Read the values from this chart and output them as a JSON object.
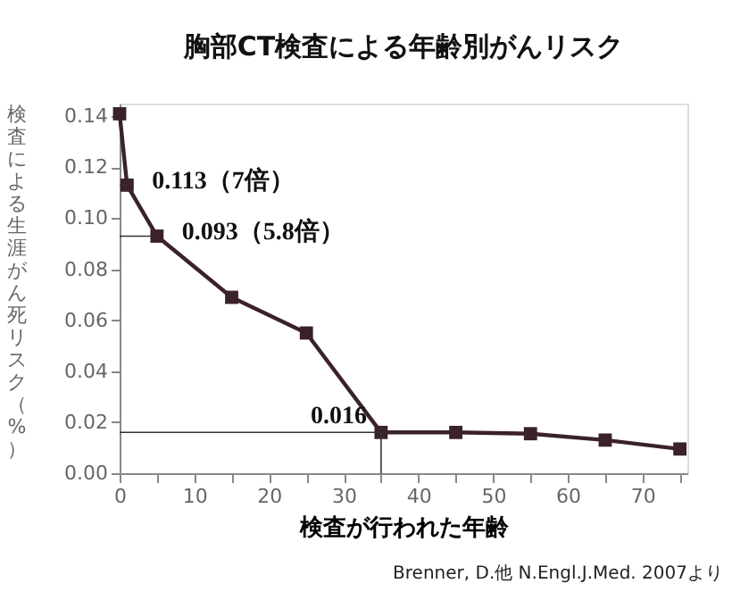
{
  "chart_data": {
    "type": "line",
    "title": "胸部CT検査による年齢別がんリスク",
    "xlabel": "検査が行われた年齢",
    "ylabel": "検査による生涯がん死リスク（%）",
    "x": [
      0,
      1,
      5,
      15,
      25,
      35,
      45,
      55,
      65,
      75
    ],
    "series": [
      {
        "color": "#3a2228",
        "values": [
          0.141,
          0.113,
          0.093,
          0.069,
          0.055,
          0.016,
          0.016,
          0.0155,
          0.013,
          0.0095
        ]
      }
    ],
    "xlim": [
      0,
      76
    ],
    "xticks": [
      0,
      {
        "value": 5,
        "label": null
      },
      10,
      {
        "value": 15,
        "label": null
      },
      20,
      {
        "value": 25,
        "label": null
      },
      30,
      {
        "value": 35,
        "label": null
      },
      40,
      {
        "value": 45,
        "label": null
      },
      50,
      {
        "value": 55,
        "label": null
      },
      60,
      {
        "value": 65,
        "label": null
      },
      70,
      {
        "value": 75,
        "label": null
      }
    ],
    "ylim": [
      0,
      0.145
    ],
    "yticks": [
      "0.00",
      {
        "value": 0.02,
        "label": "0.02"
      },
      {
        "value": 0.04,
        "label": "0.04"
      },
      {
        "value": 0.06,
        "label": "0.06"
      },
      {
        "value": 0.08,
        "label": "0.08"
      },
      {
        "value": 0.1,
        "label": "0.10"
      },
      {
        "value": 0.12,
        "label": "0.12"
      },
      {
        "value": 0.14,
        "label": "0.14"
      }
    ],
    "marker": "square",
    "grid": false,
    "annotations": [
      {
        "text": "0.113（7倍）",
        "x": 1,
        "y": 0.113
      },
      {
        "text": "0.093（5.8倍）",
        "x": 5,
        "y": 0.093
      },
      {
        "text": "0.016",
        "x": 35,
        "y": 0.016
      },
      "Brenner, D.他 N.Engl.J.Med. 2007より"
    ]
  }
}
